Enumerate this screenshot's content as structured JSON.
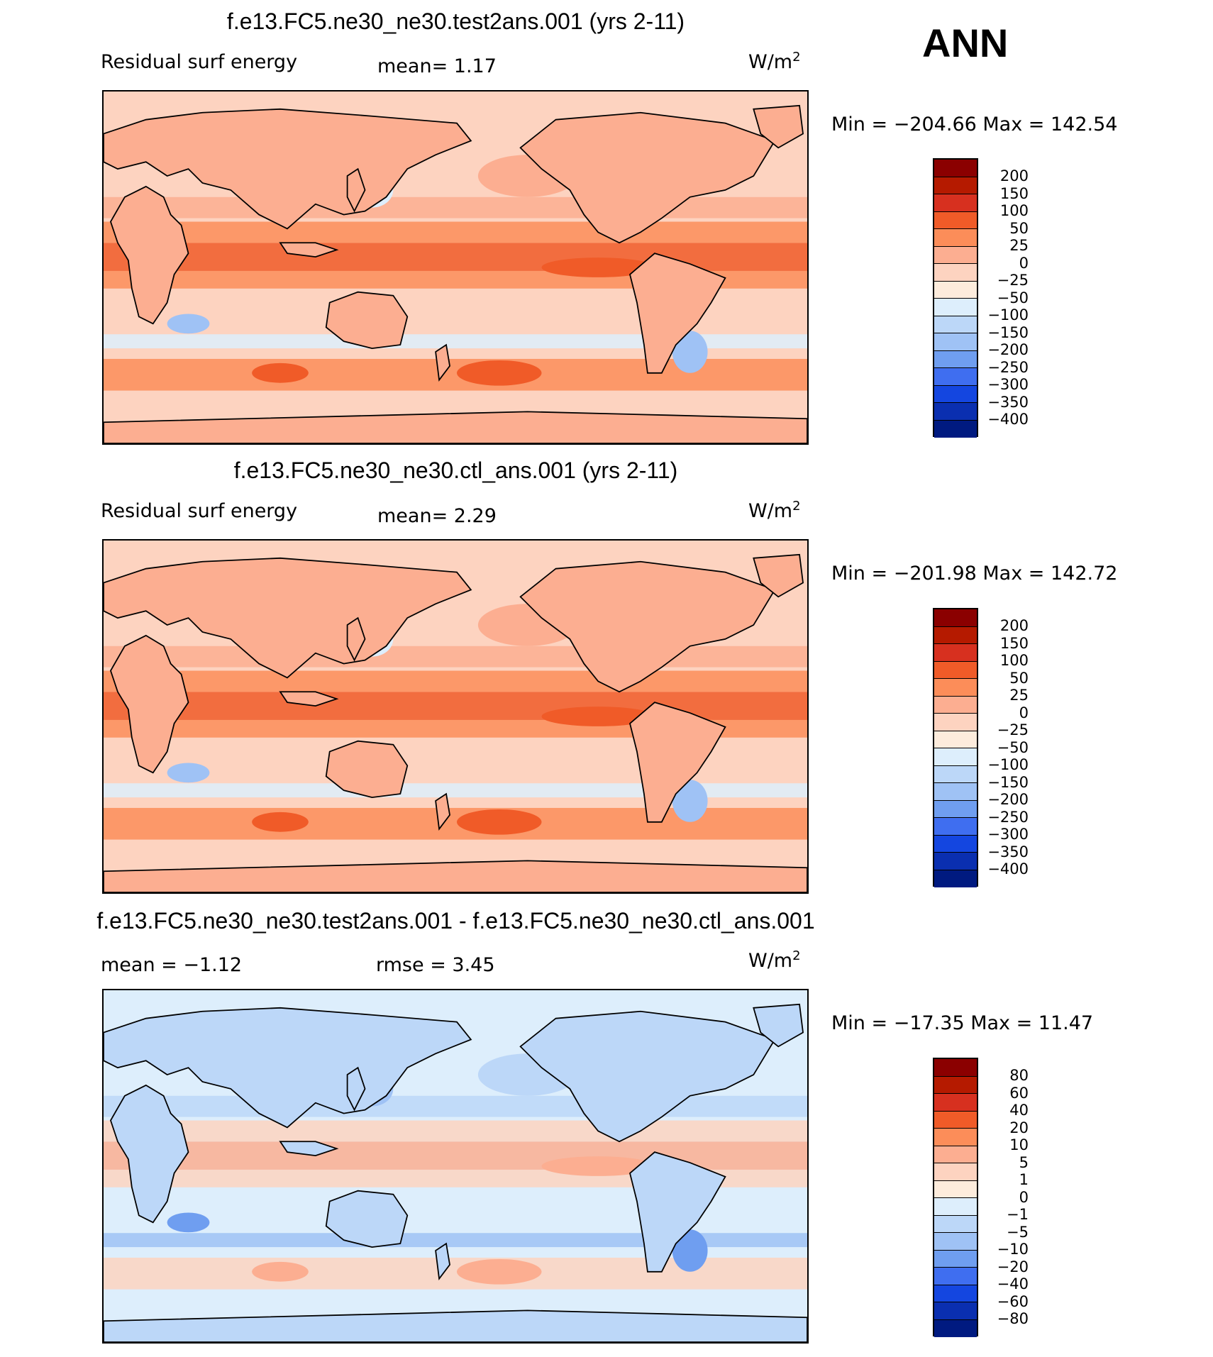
{
  "season": "ANN",
  "panels": [
    {
      "title": "f.e13.FC5.ne30_ne30.test2ans.001 (yrs 2-11)",
      "left_label": "Residual surf energy",
      "center_label": "mean=    1.17",
      "units": "W/m",
      "units_sup": "2",
      "minmax": "Min = −204.66 Max = 142.54",
      "colorbar_labels": [
        "200",
        "150",
        "100",
        "50",
        "25",
        "0",
        "−25",
        "−50",
        "−100",
        "−150",
        "−200",
        "−250",
        "−300",
        "−350",
        "−400"
      ],
      "colorbar_colors": [
        "#8b0000",
        "#b51a00",
        "#d7301f",
        "#f05b28",
        "#fc8d59",
        "#fcae91",
        "#fdd3c0",
        "#fdecdc",
        "#ddeefc",
        "#bcd7f8",
        "#9fc2f5",
        "#6f9ef0",
        "#3f6ef0",
        "#1446e0",
        "#0a2fb0",
        "#001a80"
      ],
      "map_palette": {
        "base": "#fcae91",
        "light": "#fdd3c0",
        "warm": "#fc8d59",
        "hot": "#f05b28",
        "cool": "#ddeefc",
        "blue": "#9fc2f5"
      }
    },
    {
      "title": "f.e13.FC5.ne30_ne30.ctl_ans.001 (yrs 2-11)",
      "left_label": "Residual surf energy",
      "center_label": "mean=    2.29",
      "units": "W/m",
      "units_sup": "2",
      "minmax": "Min = −201.98 Max = 142.72",
      "colorbar_labels": [
        "200",
        "150",
        "100",
        "50",
        "25",
        "0",
        "−25",
        "−50",
        "−100",
        "−150",
        "−200",
        "−250",
        "−300",
        "−350",
        "−400"
      ],
      "colorbar_colors": [
        "#8b0000",
        "#b51a00",
        "#d7301f",
        "#f05b28",
        "#fc8d59",
        "#fcae91",
        "#fdd3c0",
        "#fdecdc",
        "#ddeefc",
        "#bcd7f8",
        "#9fc2f5",
        "#6f9ef0",
        "#3f6ef0",
        "#1446e0",
        "#0a2fb0",
        "#001a80"
      ],
      "map_palette": {
        "base": "#fcae91",
        "light": "#fdd3c0",
        "warm": "#fc8d59",
        "hot": "#f05b28",
        "cool": "#ddeefc",
        "blue": "#9fc2f5"
      }
    },
    {
      "title": "f.e13.FC5.ne30_ne30.test2ans.001 - f.e13.FC5.ne30_ne30.ctl_ans.001",
      "left_label": "mean =   −1.12",
      "center_label": "rmse =    3.45",
      "units": "W/m",
      "units_sup": "2",
      "minmax": "Min = −17.35 Max =   11.47",
      "colorbar_labels": [
        "80",
        "60",
        "40",
        "20",
        "10",
        "5",
        "1",
        "0",
        "−1",
        "−5",
        "−10",
        "−20",
        "−40",
        "−60",
        "−80"
      ],
      "colorbar_colors": [
        "#8b0000",
        "#b51a00",
        "#d7301f",
        "#f05b28",
        "#fc8d59",
        "#fcae91",
        "#fdd3c0",
        "#fdecdc",
        "#ddeefc",
        "#bcd7f8",
        "#9fc2f5",
        "#6f9ef0",
        "#3f6ef0",
        "#1446e0",
        "#0a2fb0",
        "#001a80"
      ],
      "map_palette": {
        "base": "#bcd7f8",
        "light": "#ddeefc",
        "warm": "#fdd3c0",
        "hot": "#fcae91",
        "cool": "#9fc2f5",
        "blue": "#6f9ef0"
      }
    }
  ]
}
